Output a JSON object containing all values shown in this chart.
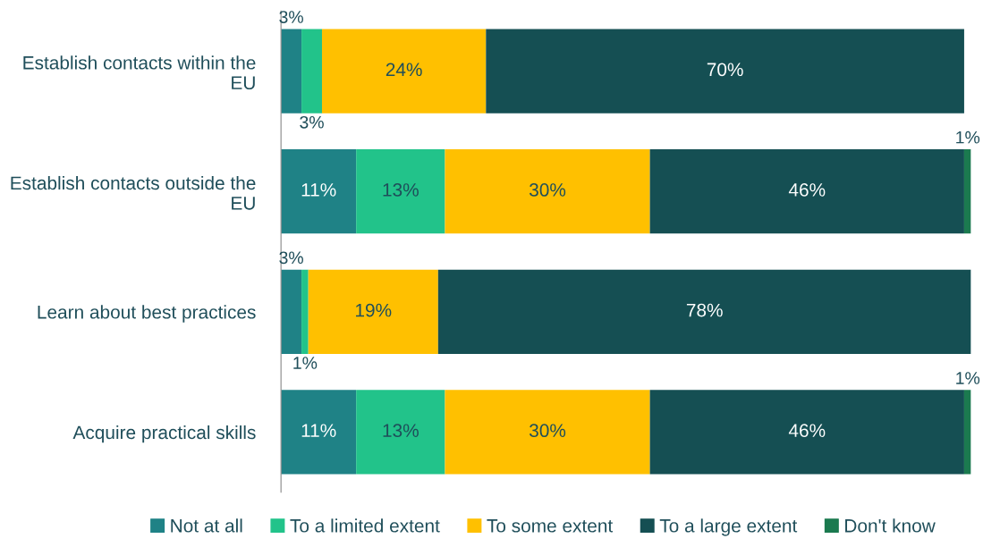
{
  "chart_data": {
    "type": "bar",
    "orientation": "horizontal",
    "stacked": true,
    "legend": "bottom",
    "grid": false,
    "categories": [
      "Establish contacts within the EU",
      "Establish contacts outside the EU",
      "Learn about best practices",
      "Acquire practical skills"
    ],
    "series": [
      {
        "name": "Not at all",
        "color": "#1f8286",
        "values": [
          3,
          11,
          3,
          11
        ],
        "value_labels": [
          "3%",
          "11%",
          "3%",
          "11%"
        ]
      },
      {
        "name": "To a limited extent",
        "color": "#22c38a",
        "values": [
          3,
          13,
          1,
          13
        ],
        "value_labels": [
          "3%",
          "13%",
          "1%",
          "13%"
        ]
      },
      {
        "name": "To some extent",
        "color": "#ffc000",
        "values": [
          24,
          30,
          19,
          30
        ],
        "value_labels": [
          "24%",
          "30%",
          "19%",
          "30%"
        ]
      },
      {
        "name": "To a large extent",
        "color": "#154f53",
        "values": [
          70,
          46,
          78,
          46
        ],
        "value_labels": [
          "70%",
          "46%",
          "78%",
          "46%"
        ]
      },
      {
        "name": "Don't know",
        "color": "#1b7a4f",
        "values": [
          null,
          1,
          null,
          1
        ],
        "value_labels": [
          null,
          "1%",
          null,
          "1%"
        ]
      }
    ]
  }
}
